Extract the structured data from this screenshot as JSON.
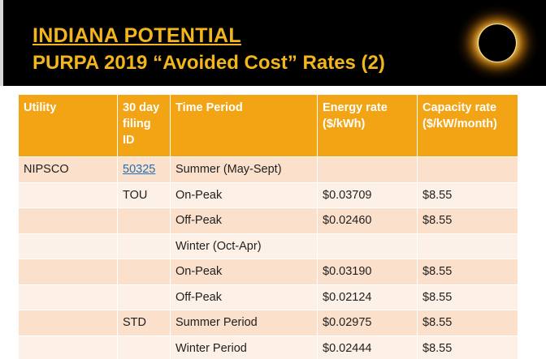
{
  "slide": {
    "title": "INDIANA POTENTIAL",
    "subtitle": "PURPA 2019 “Avoided Cost” Rates (2)"
  },
  "colors": {
    "header_bg": "#f2a414",
    "row_dark": "#fbe0cc",
    "row_light": "#fdf0e6",
    "title_text": "#f2b51c",
    "link": "#1f6fb5"
  },
  "table": {
    "headers": [
      "Utility",
      "30 day filing ID",
      "Time Period",
      "Energy rate ($/kWh)",
      "Capacity rate ($/kW/month)"
    ],
    "rows": [
      [
        "NIPSCO",
        "50325",
        "Summer (May-Sept)",
        "",
        ""
      ],
      [
        "",
        "TOU",
        "On-Peak",
        "$0.03709",
        "$8.55"
      ],
      [
        "",
        "",
        "Off-Peak",
        "$0.02460",
        "$8.55"
      ],
      [
        "",
        "",
        "Winter (Oct-Apr)",
        "",
        ""
      ],
      [
        "",
        "",
        "On-Peak",
        "$0.03190",
        "$8.55"
      ],
      [
        "",
        "",
        "Off-Peak",
        "$0.02124",
        "$8.55"
      ],
      [
        "",
        "STD",
        "Summer Period",
        "$0.02975",
        "$8.55"
      ],
      [
        "",
        "",
        "Winter Period",
        "$0.02444",
        "$8.55"
      ]
    ]
  }
}
